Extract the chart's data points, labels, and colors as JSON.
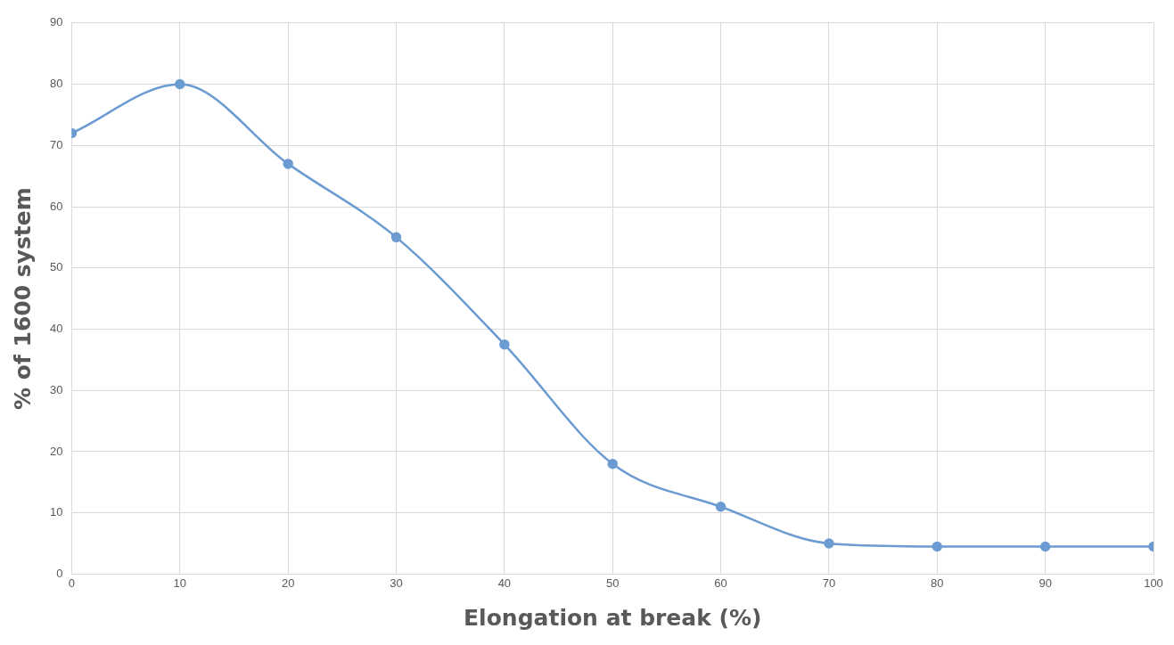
{
  "chart_data": {
    "type": "line",
    "xlabel": "Elongation at break (%)",
    "ylabel": "% of 1600 system",
    "x": [
      0,
      10,
      20,
      30,
      40,
      50,
      60,
      70,
      80,
      90,
      100
    ],
    "series": [
      {
        "color": "#6b9bd1",
        "values": [
          72,
          80,
          67,
          55,
          37.5,
          18,
          11,
          5,
          4.5,
          4.5,
          4.5
        ]
      }
    ],
    "xlim": [
      0,
      100
    ],
    "xticks": [
      0,
      10,
      20,
      30,
      40,
      50,
      60,
      70,
      80,
      90,
      100
    ],
    "ylim": [
      0,
      90
    ],
    "yticks": [
      0,
      10,
      20,
      30,
      40,
      50,
      60,
      70,
      80,
      90
    ],
    "grid": true,
    "legend": false,
    "marker": "circle",
    "line_style": "solid"
  }
}
